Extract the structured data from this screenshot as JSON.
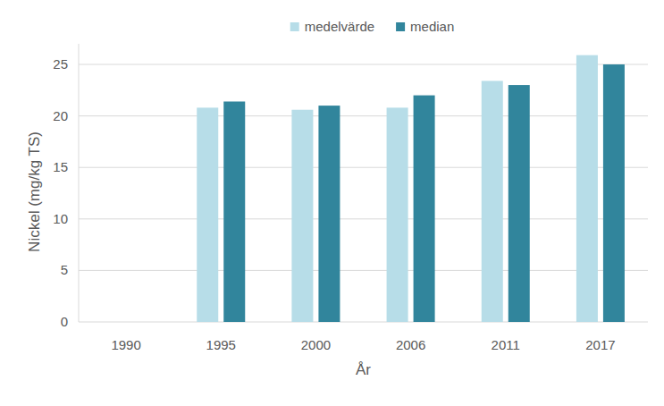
{
  "chart_data": {
    "type": "bar",
    "categories": [
      "1990",
      "1995",
      "2000",
      "2006",
      "2011",
      "2017"
    ],
    "series": [
      {
        "name": "medelvärde",
        "color": "#b7dde8",
        "values": [
          null,
          20.8,
          20.6,
          20.8,
          23.4,
          25.9
        ]
      },
      {
        "name": "median",
        "color": "#31859c",
        "values": [
          null,
          21.4,
          21.0,
          22.0,
          23.0,
          25.0
        ]
      }
    ],
    "x_label": "År",
    "y_label": "Nickel (mg/kg TS)",
    "ylim": [
      0,
      27
    ],
    "yticks": [
      0,
      5,
      10,
      15,
      20,
      25
    ],
    "grid": true,
    "legend": "top"
  }
}
